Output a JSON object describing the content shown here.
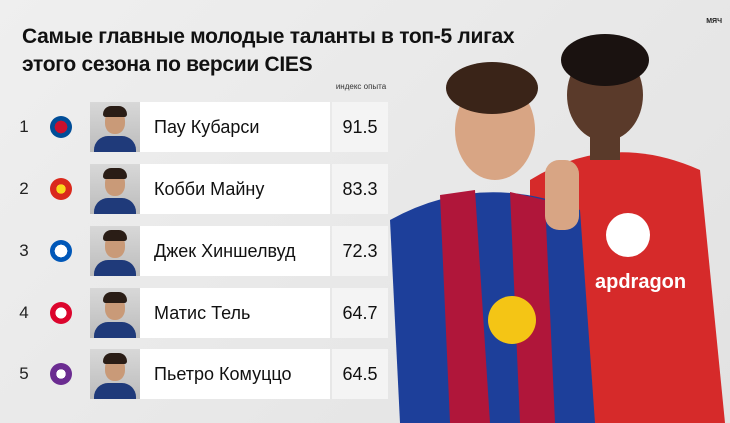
{
  "header": {
    "title_lines": [
      "Самые главные молодые таланты в топ-5 лигах",
      "этого сезона по версии CIES"
    ],
    "brand": "МЯЧ"
  },
  "table": {
    "column_header": "индекс опыта",
    "rows": [
      {
        "rank": 1,
        "name": "Пау Кубарси",
        "value": 91.5
      },
      {
        "rank": 2,
        "name": "Кобби Майну",
        "value": 83.3
      },
      {
        "rank": 3,
        "name": "Джек Хиншелвуд",
        "value": 72.3
      },
      {
        "rank": 4,
        "name": "Матис Тель",
        "value": 64.7
      },
      {
        "rank": 5,
        "name": "Пьетро Комуццо",
        "value": 64.5
      }
    ]
  }
}
